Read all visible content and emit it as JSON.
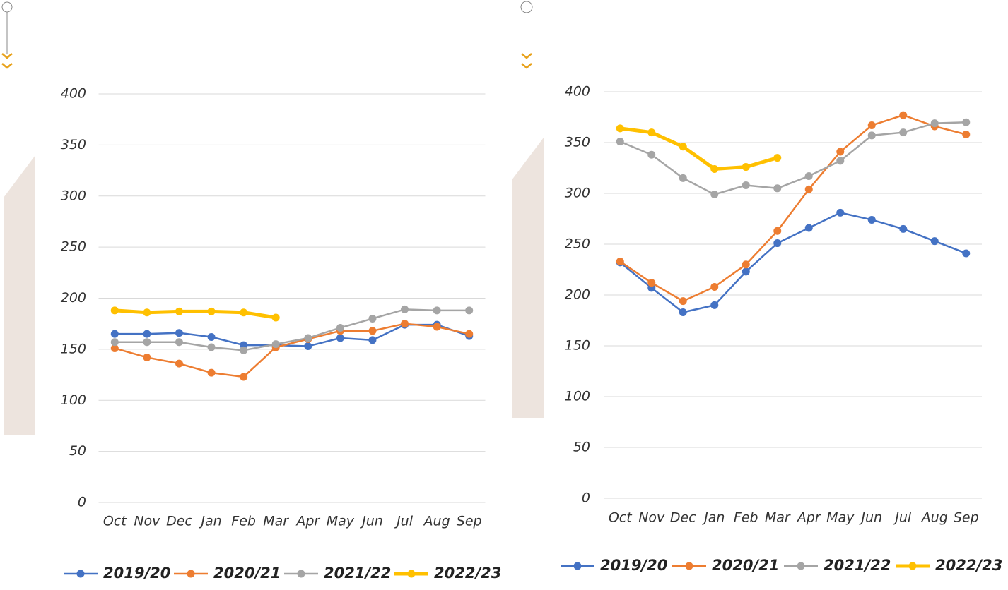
{
  "chart_data": [
    {
      "type": "line",
      "categories": [
        "Oct",
        "Nov",
        "Dec",
        "Jan",
        "Feb",
        "Mar",
        "Apr",
        "May",
        "Jun",
        "Jul",
        "Aug",
        "Sep"
      ],
      "ylim": [
        0,
        400
      ],
      "yticks": [
        0,
        50,
        100,
        150,
        200,
        250,
        300,
        350,
        400
      ],
      "grid": true,
      "series": [
        {
          "name": "2019/20",
          "color": "#4472c4",
          "values": [
            165,
            165,
            166,
            162,
            154,
            154,
            153,
            161,
            159,
            174,
            174,
            163
          ]
        },
        {
          "name": "2020/21",
          "color": "#ed7d31",
          "values": [
            151,
            142,
            136,
            127,
            123,
            152,
            160,
            168,
            168,
            175,
            172,
            165
          ]
        },
        {
          "name": "2021/22",
          "color": "#a5a5a5",
          "values": [
            157,
            157,
            157,
            152,
            149,
            155,
            161,
            171,
            180,
            189,
            188,
            188
          ]
        },
        {
          "name": "2022/23",
          "color": "#ffc000",
          "values": [
            188,
            186,
            187,
            187,
            186,
            181,
            null,
            null,
            null,
            null,
            null,
            null
          ]
        }
      ]
    },
    {
      "type": "line",
      "categories": [
        "Oct",
        "Nov",
        "Dec",
        "Jan",
        "Feb",
        "Mar",
        "Apr",
        "May",
        "Jun",
        "Jul",
        "Aug",
        "Sep"
      ],
      "ylim": [
        0,
        400
      ],
      "yticks": [
        0,
        50,
        100,
        150,
        200,
        250,
        300,
        350,
        400
      ],
      "grid": true,
      "series": [
        {
          "name": "2019/20",
          "color": "#4472c4",
          "values": [
            232,
            207,
            183,
            190,
            223,
            251,
            266,
            281,
            274,
            265,
            253,
            241
          ]
        },
        {
          "name": "2020/21",
          "color": "#ed7d31",
          "values": [
            233,
            212,
            194,
            208,
            230,
            263,
            304,
            341,
            367,
            377,
            366,
            358
          ]
        },
        {
          "name": "2021/22",
          "color": "#a5a5a5",
          "values": [
            351,
            338,
            315,
            299,
            308,
            305,
            317,
            332,
            357,
            360,
            369,
            370
          ]
        },
        {
          "name": "2022/23",
          "color": "#ffc000",
          "values": [
            364,
            360,
            346,
            324,
            326,
            335,
            null,
            null,
            null,
            null,
            null,
            null
          ]
        }
      ]
    }
  ]
}
